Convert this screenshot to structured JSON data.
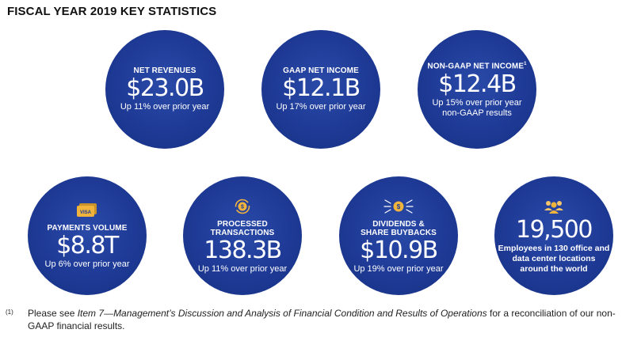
{
  "title": "FISCAL YEAR 2019 KEY STATISTICS",
  "colors": {
    "circle": "#1e3a96",
    "gold": "#f0b43c"
  },
  "stats": [
    {
      "label": "NET REVENUES",
      "value": "$23.0B",
      "note": "Up 11% over prior year"
    },
    {
      "label": "GAAP NET INCOME",
      "value": "$12.1B",
      "note": "Up 17% over prior year"
    },
    {
      "label": "NON-GAAP NET INCOME",
      "label_sup": "1",
      "value": "$12.4B",
      "note_line1": "Up 15% over prior year",
      "note_line2": "non-GAAP results"
    },
    {
      "icon": "visa-card-icon",
      "icon_text": "VISA",
      "label": "PAYMENTS VOLUME",
      "value": "$8.8T",
      "note": "Up 6% over prior year"
    },
    {
      "icon": "coin-cycle-icon",
      "label_line1": "PROCESSED",
      "label_line2": "TRANSACTIONS",
      "value": "138.3B",
      "note": "Up 11% over prior year"
    },
    {
      "icon": "coin-burst-icon",
      "label_line1": "DIVIDENDS &",
      "label_line2": "SHARE BUYBACKS",
      "value": "$10.9B",
      "note": "Up 19% over prior year"
    },
    {
      "icon": "people-icon",
      "value": "19,500",
      "note_line1": "Employees in 130 office and",
      "note_line2": "data center locations",
      "note_line3": "around the world"
    }
  ],
  "footnote": {
    "mark": "(1)",
    "pre": "Please see ",
    "italic": "Item 7—Management’s Discussion and Analysis of Financial Condition and Results of Operations",
    "post": " for a reconciliation of our non-GAAP financial results."
  }
}
